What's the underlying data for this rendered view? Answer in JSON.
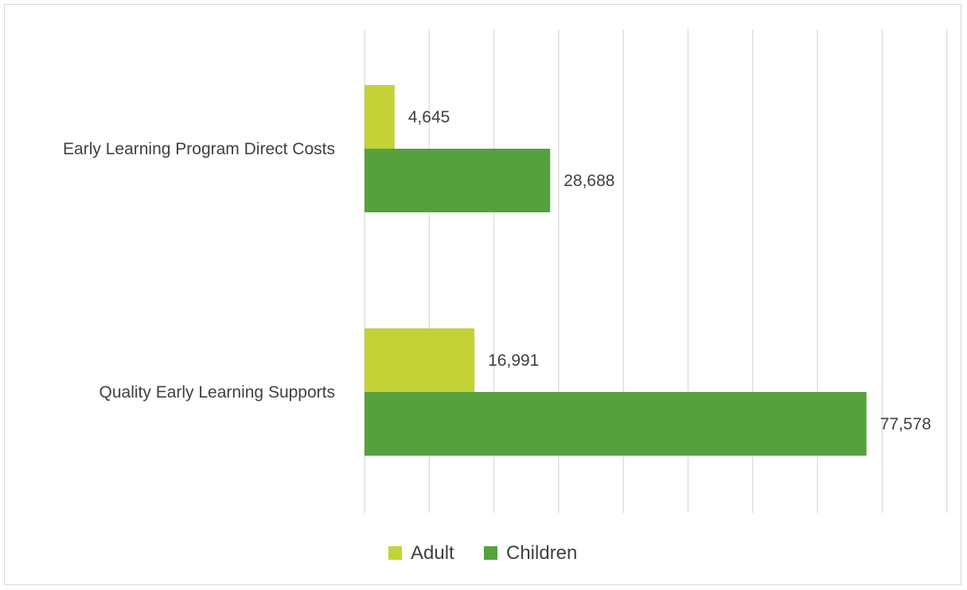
{
  "chart_data": {
    "type": "bar",
    "orientation": "horizontal",
    "categories": [
      "Early Learning Program Direct Costs",
      "Quality Early Learning Supports"
    ],
    "series": [
      {
        "name": "Adult",
        "values": [
          4645,
          16991
        ],
        "labels": [
          "4,645",
          "16,991"
        ],
        "color": "#c3d236"
      },
      {
        "name": "Children",
        "values": [
          28688,
          77578
        ],
        "labels": [
          "28,688",
          "77,578"
        ],
        "color": "#55a13d"
      }
    ],
    "xlim": [
      0,
      90000
    ],
    "grid": true,
    "legend_position": "bottom"
  }
}
